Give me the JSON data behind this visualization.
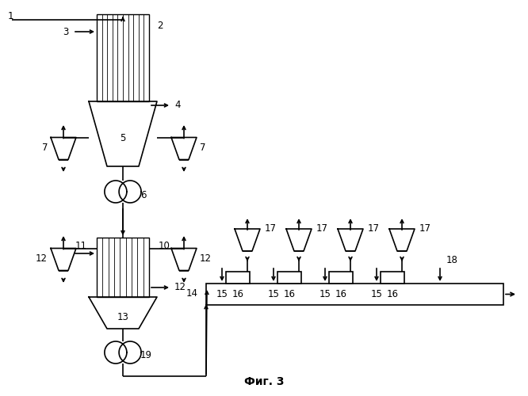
{
  "title": "Фиг. 3",
  "bg_color": "#ffffff",
  "line_color": "#000000",
  "text_color": "#000000",
  "title_fontsize": 10,
  "label_fontsize": 8.5,
  "fig_width": 6.66,
  "fig_height": 5.0,
  "dpi": 100,
  "xmax": 666,
  "ymax": 500
}
